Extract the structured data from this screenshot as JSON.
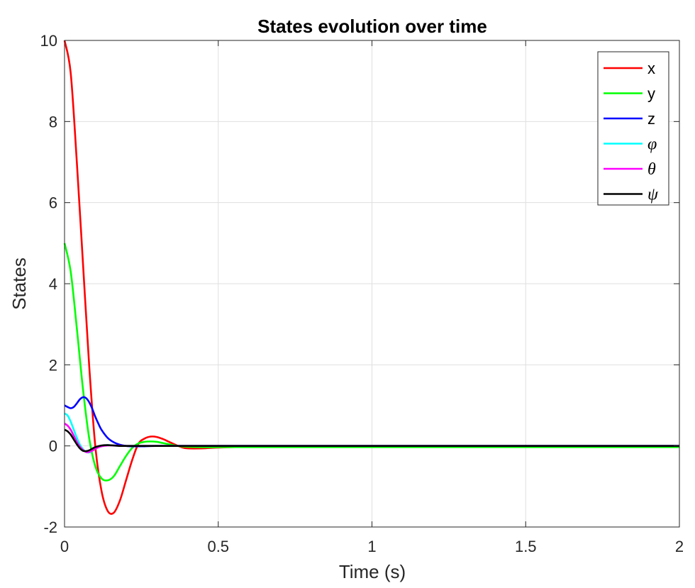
{
  "chart_data": {
    "type": "line",
    "title": "States evolution over time",
    "xlabel": "Time (s)",
    "ylabel": "States",
    "xlim": [
      0,
      2
    ],
    "ylim": [
      -2,
      10
    ],
    "xticks": [
      0,
      0.5,
      1,
      1.5,
      2
    ],
    "xtick_labels": [
      "0",
      "0.5",
      "1",
      "1.5",
      "2"
    ],
    "yticks": [
      -2,
      0,
      2,
      4,
      6,
      8,
      10
    ],
    "ytick_labels": [
      "-2",
      "0",
      "2",
      "4",
      "6",
      "8",
      "10"
    ],
    "grid": true,
    "legend_position": "top-right",
    "series": [
      {
        "name": "x",
        "color": "#ff0000",
        "x": [
          0,
          0.02,
          0.04,
          0.06,
          0.08,
          0.1,
          0.12,
          0.14,
          0.16,
          0.18,
          0.2,
          0.22,
          0.24,
          0.26,
          0.28,
          0.3,
          0.32,
          0.34,
          0.36,
          0.38,
          0.4,
          0.45,
          0.5,
          0.6,
          0.8,
          1,
          1.5,
          2
        ],
        "y": [
          10,
          9.2,
          7.0,
          4.5,
          2.0,
          0.0,
          -1.1,
          -1.6,
          -1.65,
          -1.35,
          -0.85,
          -0.35,
          0.05,
          0.18,
          0.23,
          0.22,
          0.17,
          0.1,
          0.03,
          -0.03,
          -0.06,
          -0.06,
          -0.04,
          -0.02,
          -0.01,
          -0.01,
          -0.01,
          -0.01
        ]
      },
      {
        "name": "y",
        "color": "#00ff00",
        "x": [
          0,
          0.02,
          0.04,
          0.06,
          0.08,
          0.1,
          0.12,
          0.14,
          0.16,
          0.18,
          0.2,
          0.22,
          0.24,
          0.26,
          0.28,
          0.3,
          0.32,
          0.34,
          0.36,
          0.38,
          0.4,
          0.45,
          0.5,
          0.6,
          0.8,
          1,
          1.5,
          2
        ],
        "y": [
          5.0,
          4.3,
          2.9,
          1.4,
          0.2,
          -0.5,
          -0.8,
          -0.85,
          -0.75,
          -0.5,
          -0.25,
          -0.05,
          0.06,
          0.1,
          0.11,
          0.1,
          0.07,
          0.04,
          0.01,
          -0.01,
          -0.02,
          -0.03,
          -0.03,
          -0.03,
          -0.03,
          -0.03,
          -0.03,
          -0.03
        ]
      },
      {
        "name": "z",
        "color": "#0000ff",
        "x": [
          0,
          0.01,
          0.02,
          0.03,
          0.04,
          0.05,
          0.06,
          0.07,
          0.08,
          0.09,
          0.1,
          0.11,
          0.12,
          0.14,
          0.16,
          0.18,
          0.2,
          0.22,
          0.25,
          0.3,
          0.4,
          0.5,
          1,
          1.5,
          2
        ],
        "y": [
          1.0,
          0.96,
          0.93,
          0.96,
          1.05,
          1.15,
          1.2,
          1.18,
          1.08,
          0.92,
          0.72,
          0.55,
          0.4,
          0.2,
          0.09,
          0.03,
          0.0,
          -0.01,
          -0.01,
          0.0,
          0.0,
          0.0,
          0.0,
          0.0,
          0.0
        ]
      },
      {
        "name": "φ",
        "color": "#00ffff",
        "x": [
          0,
          0.01,
          0.02,
          0.03,
          0.04,
          0.05,
          0.06,
          0.07,
          0.08,
          0.09,
          0.1,
          0.12,
          0.14,
          0.16,
          0.2,
          0.25,
          0.3,
          0.5,
          1,
          1.5,
          2
        ],
        "y": [
          0.8,
          0.75,
          0.6,
          0.4,
          0.2,
          0.03,
          -0.08,
          -0.15,
          -0.16,
          -0.12,
          -0.06,
          0.0,
          0.02,
          0.01,
          0.0,
          0.0,
          0.0,
          0.0,
          0.0,
          0.0,
          0.0
        ]
      },
      {
        "name": "θ",
        "color": "#ff00ff",
        "x": [
          0,
          0.01,
          0.02,
          0.03,
          0.04,
          0.05,
          0.06,
          0.07,
          0.08,
          0.09,
          0.1,
          0.12,
          0.14,
          0.16,
          0.2,
          0.25,
          0.3,
          0.5,
          1,
          1.5,
          2
        ],
        "y": [
          0.55,
          0.5,
          0.4,
          0.25,
          0.1,
          -0.02,
          -0.1,
          -0.15,
          -0.15,
          -0.12,
          -0.07,
          -0.01,
          0.01,
          0.01,
          0.0,
          0.0,
          0.0,
          0.0,
          0.0,
          0.0,
          0.0
        ]
      },
      {
        "name": "ψ",
        "color": "#000000",
        "x": [
          0,
          0.01,
          0.02,
          0.03,
          0.04,
          0.05,
          0.06,
          0.07,
          0.08,
          0.09,
          0.1,
          0.12,
          0.14,
          0.16,
          0.18,
          0.2,
          0.25,
          0.3,
          0.5,
          1,
          1.5,
          2
        ],
        "y": [
          0.4,
          0.36,
          0.28,
          0.16,
          0.04,
          -0.06,
          -0.12,
          -0.13,
          -0.11,
          -0.07,
          -0.03,
          0.01,
          0.02,
          0.01,
          0.0,
          0.0,
          0.0,
          0.0,
          0.0,
          0.0,
          0.0,
          0.0
        ]
      }
    ]
  }
}
